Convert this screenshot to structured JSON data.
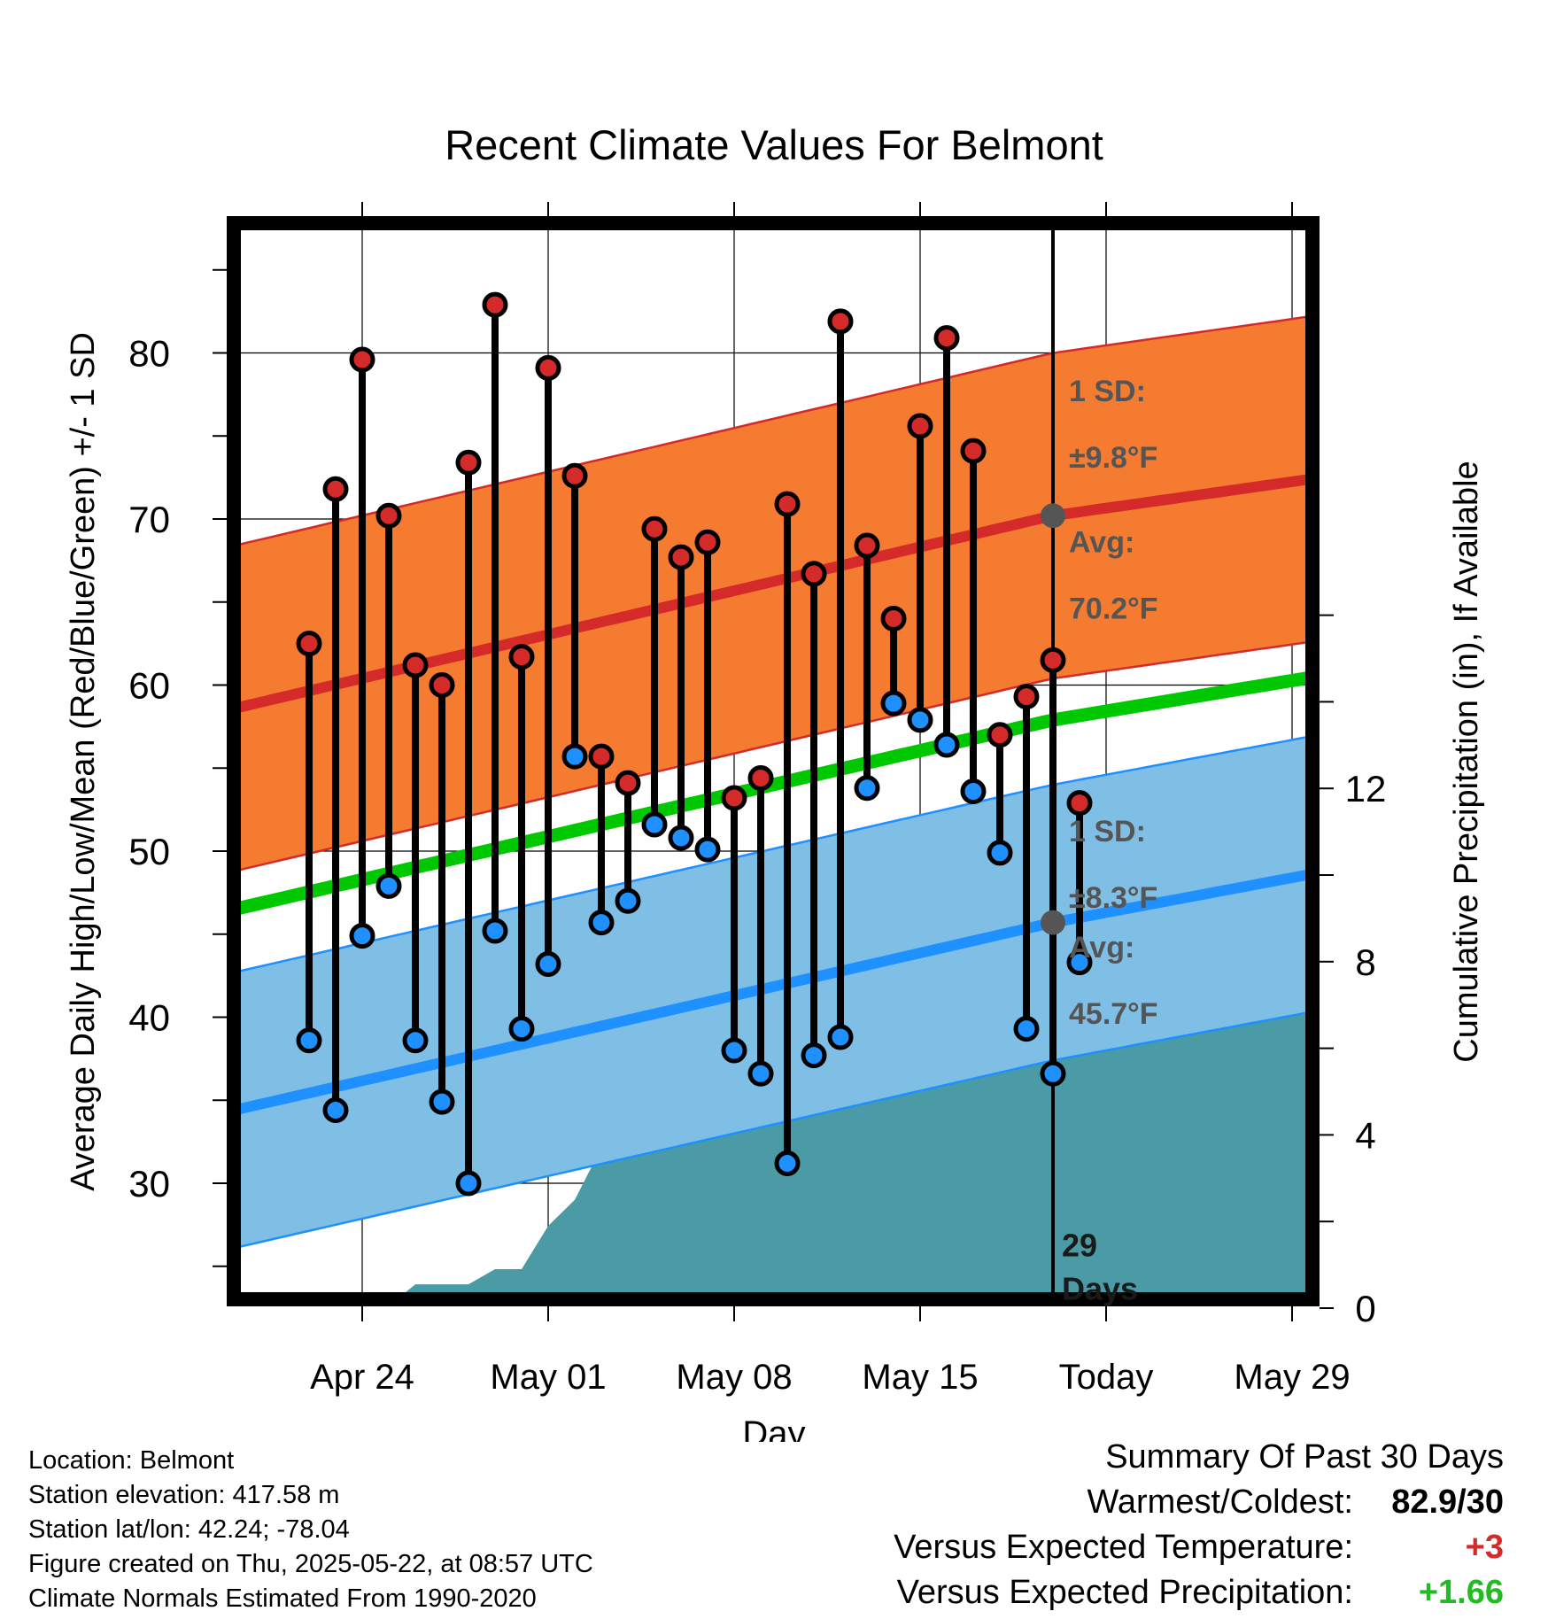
{
  "chart_data": {
    "type": "line",
    "title": "Recent Climate Values For Belmont",
    "xlabel": "Day",
    "ylabel": "Average Daily High/Low/Mean (Red/Blue/Green) +/- 1 SD",
    "y2label": "Cumulative Precipitation (in), If Available",
    "x_ticks": [
      "Apr 24",
      "May 01",
      "May 08",
      "May 15",
      "Today",
      "May 29"
    ],
    "y_ticks": [
      30,
      40,
      50,
      60,
      70,
      80
    ],
    "y2_ticks": [
      0,
      4,
      8,
      12
    ],
    "ylim": [
      22.5,
      88
    ],
    "y2lim": [
      0,
      24.8
    ],
    "xlim": [
      "2025-04-20",
      "2025-06-01"
    ],
    "x_days_since_apr22": [
      0,
      1,
      2,
      3,
      4,
      5,
      6,
      7,
      8,
      9,
      10,
      11,
      12,
      13,
      14,
      15,
      16,
      17,
      18,
      19,
      20,
      21,
      22,
      23,
      24,
      25,
      26,
      27,
      28,
      29
    ],
    "daily_high": [
      62.5,
      71.8,
      79.6,
      70.2,
      61.2,
      60.0,
      73.4,
      82.9,
      61.7,
      79.1,
      72.6,
      55.7,
      54.1,
      69.4,
      67.7,
      68.6,
      53.2,
      54.4,
      70.9,
      66.7,
      81.9,
      68.4,
      64.0,
      75.6,
      80.9,
      74.1,
      57.0,
      59.3,
      61.5,
      52.9
    ],
    "daily_low": [
      38.6,
      34.4,
      44.9,
      47.9,
      38.6,
      34.9,
      30.0,
      45.2,
      39.3,
      43.2,
      55.7,
      45.7,
      47.0,
      51.6,
      50.8,
      50.1,
      38.0,
      36.6,
      31.2,
      37.7,
      38.8,
      53.8,
      58.9,
      57.9,
      56.4,
      53.6,
      49.9,
      39.3,
      36.6,
      43.3
    ],
    "normal_high_avg": {
      "x_days_since_apr22": [
        -2,
        28,
        39
      ],
      "values": [
        58.9,
        70.2,
        72.7
      ]
    },
    "normal_high_sd": 9.8,
    "normal_low_avg": {
      "x_days_since_apr22": [
        -2,
        28,
        39
      ],
      "values": [
        34.7,
        45.7,
        49.0
      ]
    },
    "normal_low_sd": 8.3,
    "normal_mean": {
      "x_days_since_apr22": [
        -2,
        28,
        39
      ],
      "values": [
        46.8,
        57.9,
        60.8
      ]
    },
    "cumulative_precip": {
      "x_days_since_apr22": [
        2.8,
        3.0,
        4.0,
        5.0,
        6.0,
        7.0,
        8.0,
        9.0,
        10.0,
        11.0,
        12.0,
        13.0,
        14.0,
        15.0,
        16.0,
        17.0,
        18.0,
        19.0,
        20.0,
        21.0,
        22.0,
        23.0,
        24.0,
        25.0,
        26.0,
        39.0
      ],
      "values": [
        0.0,
        0.05,
        0.55,
        0.55,
        0.55,
        0.9,
        0.9,
        1.9,
        2.5,
        3.7,
        3.9,
        5.7,
        6.5,
        6.5,
        6.5,
        6.5,
        6.5,
        6.5,
        6.5,
        6.8,
        6.8,
        6.8,
        7.1,
        7.25,
        7.25,
        7.25
      ]
    },
    "annotations": {
      "high_sd_label": "1 SD:",
      "high_sd_value": "±9.8°F",
      "high_avg_label": "Avg:",
      "high_avg_value": "70.2°F",
      "low_sd_label": "1 SD:",
      "low_sd_value": "±8.3°F",
      "low_avg_label": "Avg:",
      "low_avg_value": "45.7°F",
      "days_count": "29",
      "days_word": "Days"
    },
    "colors": {
      "high_band": "#f47b30",
      "high_line": "#d42a2a",
      "low_band": "#7fbfe6",
      "low_line": "#1e90ff",
      "mean_line": "#00c800",
      "precip": "#4a9ba5",
      "high_marker": "#d42a2a",
      "low_marker": "#1e90ff"
    }
  },
  "meta": {
    "location": "Location: Belmont",
    "elevation": "Station elevation: 417.58 m",
    "latlon": "Station lat/lon: 42.24; -78.04",
    "created": "Figure created on Thu, 2025-05-22, at 08:57 UTC",
    "normals": "Climate Normals Estimated From 1990-2020"
  },
  "summary": {
    "title": "Summary Of Past 30 Days",
    "warmest_label": "Warmest/Coldest:",
    "warmest_value": "82.9/30",
    "temp_label": "Versus Expected Temperature:",
    "temp_value": "+3",
    "temp_color": "#d42a2a",
    "precip_label": "Versus Expected Precipitation:",
    "precip_value": "+1.66",
    "precip_color": "#22bb22"
  }
}
